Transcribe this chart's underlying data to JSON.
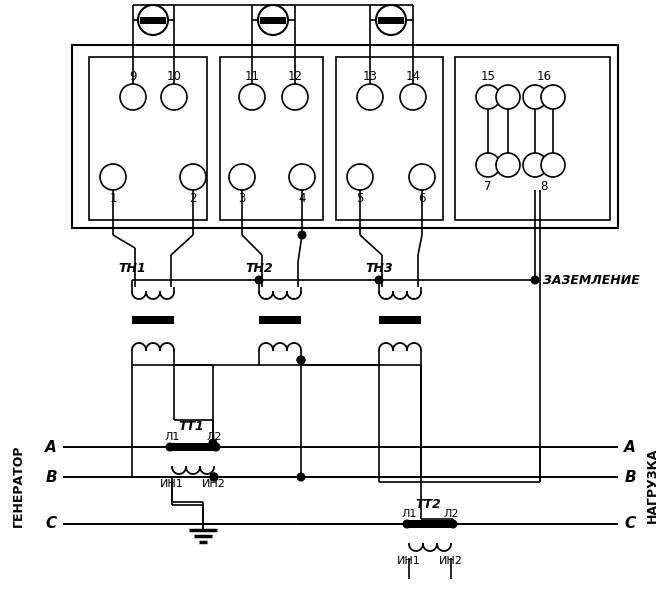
{
  "bg": "#ffffff",
  "lc": "#000000",
  "figsize": [
    6.7,
    6.02
  ],
  "dpi": 100,
  "tn_labels": [
    "ТН1",
    "ТН2",
    "ТН3"
  ],
  "tt1_label": "ТТ1",
  "tt2_label": "ТТ2",
  "L1": "Л1",
  "L2": "Л2",
  "I1": "ИН1",
  "I2": "ИН2",
  "phase_A": "A",
  "phase_B": "B",
  "phase_C": "C",
  "generator": "ГЕНЕРАТОР",
  "load": "НАГРУЗКА",
  "zazemlenie": "ЗАЗЕМЛЕНИЕ"
}
